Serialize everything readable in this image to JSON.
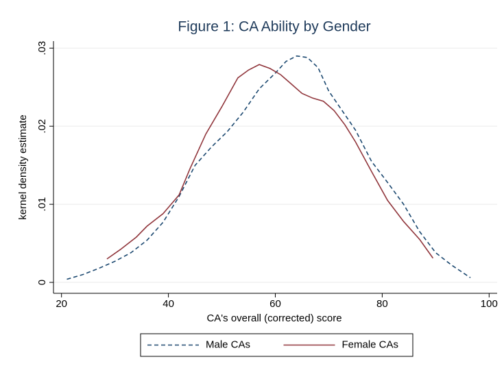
{
  "chart_data": {
    "type": "line",
    "title": "Figure 1: CA Ability by Gender",
    "xlabel": "CA's overall (corrected) score",
    "ylabel": "kernel density estimate",
    "xlim": [
      18.5,
      101.5
    ],
    "xticks": [
      20,
      40,
      60,
      80,
      100
    ],
    "ylim": [
      -0.0014,
      0.0309
    ],
    "yticks": [
      0,
      {
        "value": 0.01,
        "label": ".01"
      },
      {
        "value": 0.02,
        "label": ".02"
      },
      {
        "value": 0.03,
        "label": ".03"
      }
    ],
    "grid": true,
    "legend_position": "bottom",
    "series": [
      {
        "name": "Male CAs",
        "color": "#1a476f",
        "style": "dashed",
        "x": [
          21,
          24,
          27,
          30,
          33,
          36,
          39,
          42,
          45,
          48,
          51,
          54,
          57,
          60,
          62,
          64,
          66,
          68,
          70,
          72,
          75,
          78,
          81,
          84,
          87,
          90,
          93,
          96.5
        ],
        "values": [
          0.0004,
          0.001,
          0.0018,
          0.0027,
          0.0038,
          0.0054,
          0.0077,
          0.011,
          0.015,
          0.0173,
          0.0193,
          0.0218,
          0.0248,
          0.0268,
          0.0283,
          0.029,
          0.0288,
          0.0275,
          0.0245,
          0.0225,
          0.0195,
          0.0155,
          0.0128,
          0.01,
          0.0065,
          0.0038,
          0.0022,
          0.0006
        ]
      },
      {
        "name": "Female CAs",
        "color": "#90353b",
        "style": "solid",
        "x": [
          28.5,
          31,
          34,
          36,
          39,
          42,
          44,
          47,
          50,
          53,
          55,
          57,
          59,
          61,
          63,
          65,
          67,
          69,
          71,
          73,
          75,
          78,
          81,
          84,
          87,
          89.5
        ],
        "values": [
          0.003,
          0.0042,
          0.0058,
          0.0072,
          0.0088,
          0.0112,
          0.0145,
          0.019,
          0.0225,
          0.0262,
          0.0272,
          0.0279,
          0.0274,
          0.0266,
          0.0254,
          0.0242,
          0.0236,
          0.0232,
          0.022,
          0.0202,
          0.018,
          0.0142,
          0.0105,
          0.0078,
          0.0055,
          0.0031
        ]
      }
    ]
  }
}
